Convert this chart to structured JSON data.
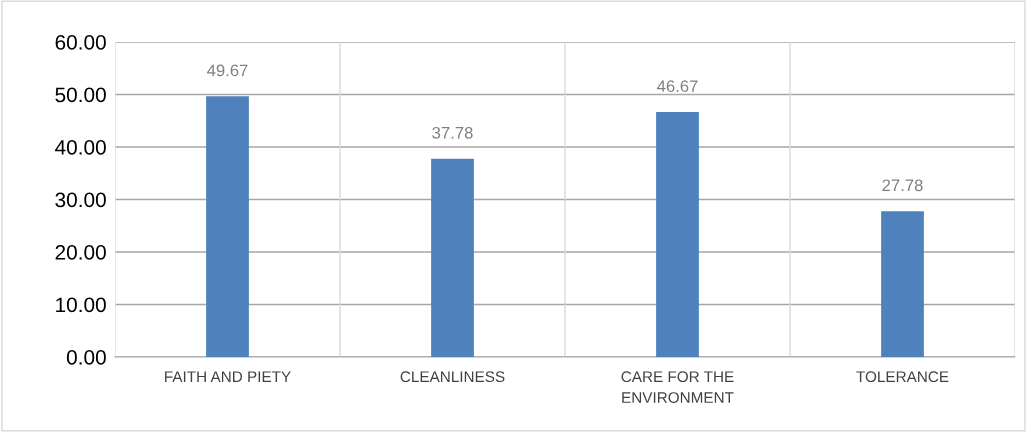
{
  "chart_data": {
    "type": "bar",
    "categories": [
      "FAITH AND PIETY",
      "CLEANLINESS",
      "CARE FOR THE\nENVIRONMENT",
      "TOLERANCE"
    ],
    "values": [
      49.67,
      37.78,
      46.67,
      27.78
    ],
    "color": "#4f81bd",
    "data_labels": true,
    "ylim": [
      0,
      60
    ],
    "yticks": [
      {
        "value": 0,
        "label": "0.00"
      },
      {
        "value": 10,
        "label": "10.00"
      },
      {
        "value": 20,
        "label": "20.00"
      },
      {
        "value": 30,
        "label": "30.00"
      },
      {
        "value": 40,
        "label": "40.00"
      },
      {
        "value": 50,
        "label": "50.00"
      },
      {
        "value": 60,
        "label": "60.00"
      }
    ],
    "grid": true
  }
}
